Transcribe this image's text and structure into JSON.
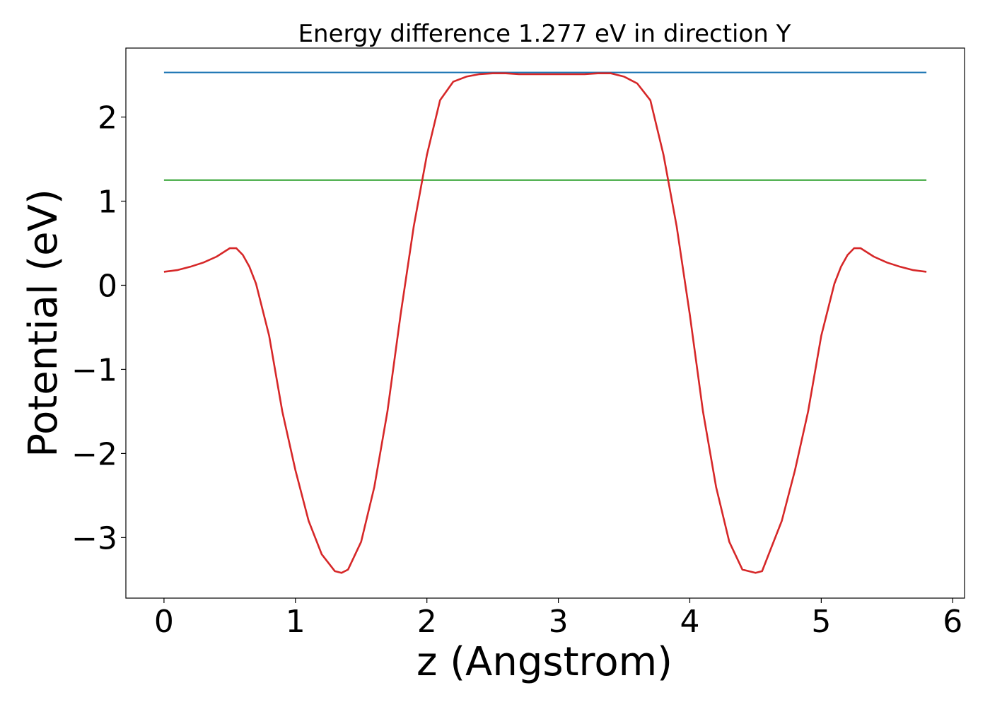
{
  "chart_data": {
    "type": "line",
    "title": "Energy difference 1.277 eV in direction Y",
    "xlabel": "z (Angstrom)",
    "ylabel": "Potential (eV)",
    "xlim": [
      -0.29,
      6.09
    ],
    "ylim": [
      -3.72,
      2.82
    ],
    "xticks": [
      0,
      1,
      2,
      3,
      4,
      5,
      6
    ],
    "yticks": [
      -3,
      -2,
      -1,
      0,
      1,
      2
    ],
    "grid": false,
    "legend": "none",
    "series": [
      {
        "color": "#1f77b4",
        "x": [
          0,
          5.8
        ],
        "y": [
          2.53,
          2.53
        ]
      },
      {
        "color": "#2ca02c",
        "x": [
          0,
          5.8
        ],
        "y": [
          1.25,
          1.25
        ]
      },
      {
        "color": "#d62728",
        "x": [
          0.0,
          0.1,
          0.2,
          0.3,
          0.4,
          0.5,
          0.55,
          0.6,
          0.65,
          0.7,
          0.8,
          0.9,
          1.0,
          1.1,
          1.2,
          1.3,
          1.35,
          1.4,
          1.5,
          1.6,
          1.7,
          1.8,
          1.9,
          2.0,
          2.1,
          2.2,
          2.3,
          2.4,
          2.5,
          2.6,
          2.7,
          2.8,
          2.9,
          3.0,
          3.1,
          3.2,
          3.3,
          3.4,
          3.5,
          3.6,
          3.7,
          3.8,
          3.9,
          4.0,
          4.1,
          4.2,
          4.3,
          4.4,
          4.5,
          4.55,
          4.6,
          4.7,
          4.8,
          4.9,
          5.0,
          5.1,
          5.15,
          5.2,
          5.25,
          5.3,
          5.4,
          5.5,
          5.6,
          5.7,
          5.8
        ],
        "y": [
          0.16,
          0.18,
          0.22,
          0.27,
          0.34,
          0.44,
          0.44,
          0.36,
          0.22,
          0.02,
          -0.6,
          -1.5,
          -2.2,
          -2.8,
          -3.2,
          -3.4,
          -3.42,
          -3.38,
          -3.05,
          -2.4,
          -1.5,
          -0.35,
          0.7,
          1.55,
          2.2,
          2.42,
          2.48,
          2.51,
          2.52,
          2.52,
          2.51,
          2.51,
          2.51,
          2.51,
          2.51,
          2.51,
          2.52,
          2.52,
          2.48,
          2.4,
          2.2,
          1.55,
          0.7,
          -0.35,
          -1.5,
          -2.4,
          -3.05,
          -3.38,
          -3.42,
          -3.4,
          -3.2,
          -2.8,
          -2.2,
          -1.5,
          -0.6,
          0.02,
          0.22,
          0.36,
          0.44,
          0.44,
          0.34,
          0.27,
          0.22,
          0.18,
          0.16
        ]
      }
    ]
  }
}
